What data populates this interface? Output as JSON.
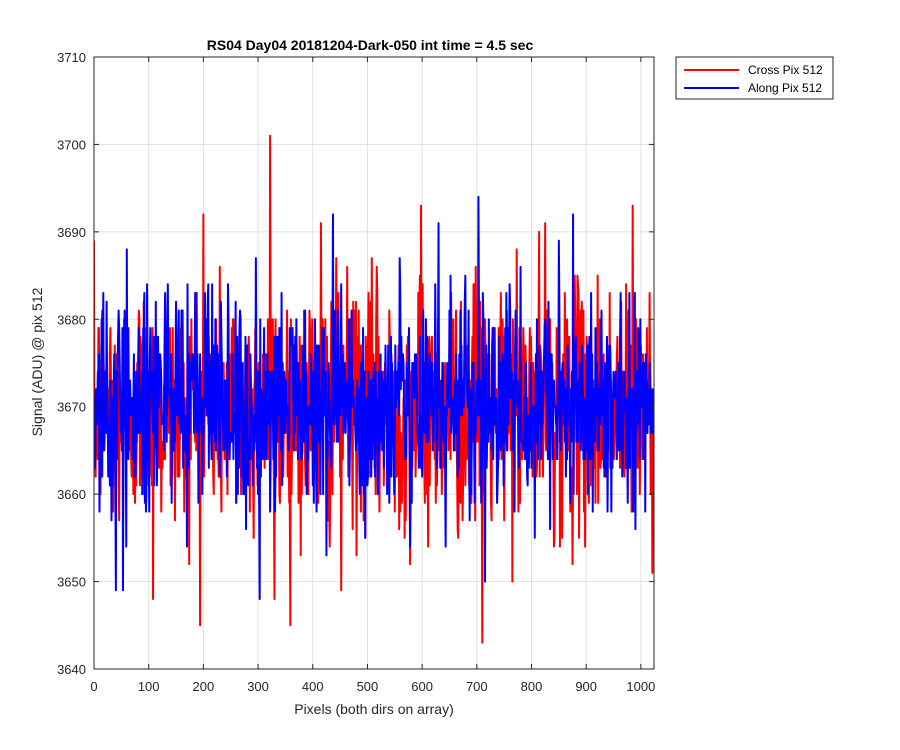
{
  "chart_data": {
    "type": "line",
    "title": "RS04 Day04 20181204-Dark-050 int time = 4.5 sec",
    "xlabel": "Pixels (both dirs on array)",
    "ylabel": "Signal (ADU) @ pix 512",
    "xlim": [
      0,
      1024
    ],
    "ylim": [
      3640,
      3710
    ],
    "xticks": [
      0,
      100,
      200,
      300,
      400,
      500,
      600,
      700,
      800,
      900,
      1000
    ],
    "yticks": [
      3640,
      3650,
      3660,
      3670,
      3680,
      3690,
      3700,
      3710
    ],
    "grid": true,
    "legend_position": "outside-top-right",
    "series": [
      {
        "name": "Cross Pix 512",
        "color": "#ff0000",
        "noise": {
          "n": 1024,
          "mean": 3670,
          "sd": 7,
          "min": 3643,
          "max": 3701
        },
        "highlights": [
          [
            322,
            3701
          ],
          [
            710,
            3643
          ],
          [
            108,
            3648
          ],
          [
            330,
            3648
          ],
          [
            200,
            3692
          ],
          [
            598,
            3693
          ],
          [
            985,
            3693
          ],
          [
            825,
            3691
          ],
          [
            415,
            3691
          ],
          [
            452,
            3649
          ]
        ]
      },
      {
        "name": "Along Pix 512",
        "color": "#0000ff",
        "noise": {
          "n": 1024,
          "mean": 3670,
          "sd": 6,
          "min": 3648,
          "max": 3694
        },
        "highlights": [
          [
            703,
            3694
          ],
          [
            437,
            3692
          ],
          [
            876,
            3692
          ],
          [
            303,
            3648
          ],
          [
            40,
            3649
          ],
          [
            53,
            3649
          ],
          [
            630,
            3691
          ],
          [
            715,
            3650
          ],
          [
            850,
            3689
          ],
          [
            60,
            3688
          ]
        ]
      }
    ]
  }
}
